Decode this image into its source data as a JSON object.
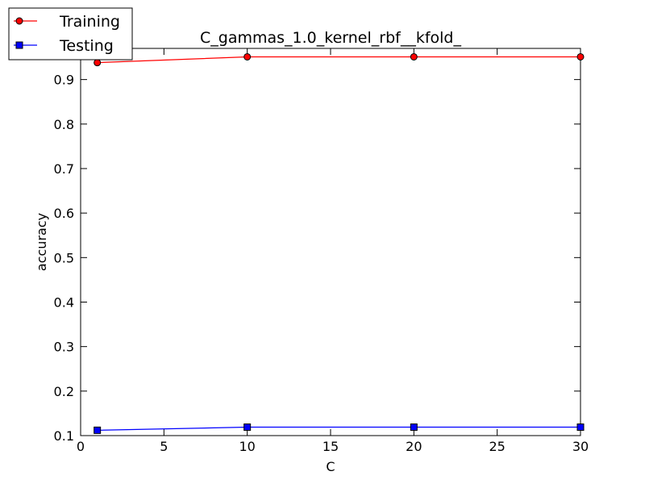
{
  "chart_data": {
    "type": "line",
    "title": "C_gammas_1.0_kernel_rbf__kfold_",
    "xlabel": "C",
    "ylabel": "accuracy",
    "xlim": [
      0,
      30
    ],
    "ylim": [
      0.1,
      0.97
    ],
    "xticks": [
      0,
      5,
      10,
      15,
      20,
      25,
      30
    ],
    "yticks": [
      0.1,
      0.2,
      0.3,
      0.4,
      0.5,
      0.6,
      0.7,
      0.8,
      0.9
    ],
    "x": [
      1,
      10,
      20,
      30
    ],
    "series": [
      {
        "name": "Training",
        "values": [
          0.938,
          0.951,
          0.951,
          0.951
        ],
        "color": "#ff0000",
        "marker": "circle"
      },
      {
        "name": "Testing",
        "values": [
          0.112,
          0.119,
          0.119,
          0.119
        ],
        "color": "#0000ff",
        "marker": "square"
      }
    ],
    "legend_position": "top-left",
    "grid": false
  }
}
